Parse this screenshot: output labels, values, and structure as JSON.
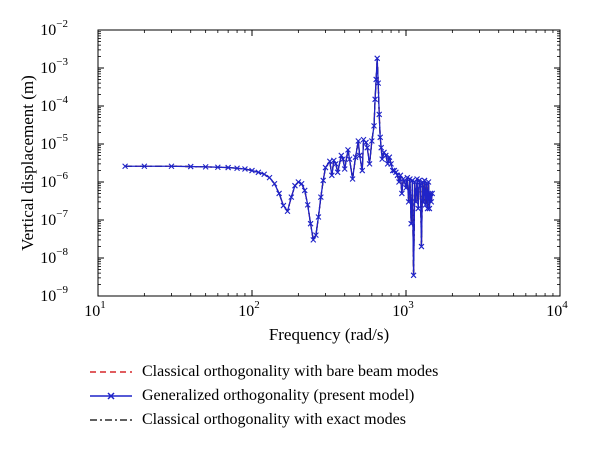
{
  "chart_data": {
    "type": "line",
    "xlabel": "Frequency (rad/s)",
    "ylabel": "Vertical displacement (m)",
    "xscale": "log",
    "yscale": "log",
    "xlim": [
      10,
      10000
    ],
    "ylim": [
      1e-09,
      0.01
    ],
    "x_ticks": [
      {
        "value": 10,
        "base": "10",
        "exp": "1"
      },
      {
        "value": 100,
        "base": "10",
        "exp": "2"
      },
      {
        "value": 1000,
        "base": "10",
        "exp": "3"
      },
      {
        "value": 10000,
        "base": "10",
        "exp": "4"
      }
    ],
    "y_ticks": [
      {
        "value": 1e-09,
        "base": "10",
        "exp": "−9"
      },
      {
        "value": 1e-08,
        "base": "10",
        "exp": "−8"
      },
      {
        "value": 1e-07,
        "base": "10",
        "exp": "−7"
      },
      {
        "value": 1e-06,
        "base": "10",
        "exp": "−6"
      },
      {
        "value": 1e-05,
        "base": "10",
        "exp": "−5"
      },
      {
        "value": 0.0001,
        "base": "10",
        "exp": "−4"
      },
      {
        "value": 0.001,
        "base": "10",
        "exp": "−3"
      },
      {
        "value": 0.01,
        "base": "10",
        "exp": "−2"
      }
    ],
    "grid": false,
    "legend_position": "below",
    "x": [
      15,
      20,
      30,
      40,
      50,
      60,
      70,
      80,
      90,
      100,
      110,
      120,
      130,
      140,
      150,
      160,
      170,
      180,
      190,
      200,
      210,
      220,
      230,
      240,
      250,
      260,
      270,
      280,
      290,
      300,
      320,
      330,
      340,
      350,
      360,
      380,
      390,
      400,
      420,
      430,
      450,
      470,
      490,
      500,
      520,
      530,
      550,
      560,
      580,
      600,
      620,
      630,
      640,
      650,
      660,
      670,
      680,
      690,
      700,
      720,
      740,
      760,
      780,
      800,
      820,
      840,
      860,
      880,
      900,
      920,
      940,
      960,
      980,
      1000,
      1020,
      1040,
      1060,
      1080,
      1100,
      1120,
      1140,
      1160,
      1180,
      1200,
      1220,
      1240,
      1260,
      1280,
      1300,
      1320,
      1340,
      1360,
      1380,
      1400,
      1420,
      1440,
      1460,
      1480
    ],
    "series": [
      {
        "name": "Classical orthogonality with bare beam modes",
        "color": "#d62728",
        "dash": "dashed",
        "marker": "none",
        "values": [
          2.6e-06,
          2.6e-06,
          2.6e-06,
          2.55e-06,
          2.5e-06,
          2.45e-06,
          2.4e-06,
          2.3e-06,
          2.2e-06,
          2e-06,
          1.8e-06,
          1.6e-06,
          1.3e-06,
          9e-07,
          5e-07,
          2.4e-07,
          1.7e-07,
          4e-07,
          8e-07,
          1e-06,
          9e-07,
          6e-07,
          2.5e-07,
          8e-08,
          3e-08,
          4e-08,
          1.2e-07,
          4e-07,
          1.1e-06,
          2.4e-06,
          3.5e-06,
          1.5e-06,
          3.7e-06,
          3e-06,
          1.8e-06,
          5e-06,
          4e-06,
          2.2e-06,
          7e-06,
          4e-06,
          1.2e-06,
          4.5e-06,
          1.2e-05,
          5e-06,
          2e-06,
          1.3e-05,
          1.1e-05,
          8e-06,
          3e-06,
          1.2e-05,
          3e-05,
          0.00015,
          0.0005,
          0.0018,
          0.0004,
          6e-05,
          1.5e-05,
          8e-06,
          4e-06,
          6e-06,
          5e-06,
          3e-06,
          4.5e-06,
          3e-06,
          2e-06,
          2e-06,
          1.8e-06,
          1.5e-06,
          1e-06,
          1.5e-06,
          5e-07,
          1.2e-06,
          1e-06,
          7e-07,
          1.3e-06,
          3e-07,
          1.2e-06,
          8e-08,
          1.1e-06,
          3.5e-09,
          1e-06,
          3e-07,
          1.2e-06,
          2e-07,
          1.1e-06,
          8e-07,
          2e-08,
          1e-06,
          3e-07,
          1.1e-06,
          2.5e-07,
          9e-07,
          2e-07,
          1e-06,
          2e-07,
          5e-07,
          3e-07,
          5e-07
        ]
      },
      {
        "name": "Generalized orthogonality (present model)",
        "color": "#1f23c8",
        "dash": "solid",
        "marker": "x",
        "values": [
          2.6e-06,
          2.6e-06,
          2.6e-06,
          2.55e-06,
          2.5e-06,
          2.45e-06,
          2.4e-06,
          2.3e-06,
          2.2e-06,
          2e-06,
          1.8e-06,
          1.6e-06,
          1.3e-06,
          9e-07,
          5e-07,
          2.4e-07,
          1.7e-07,
          4e-07,
          8e-07,
          1e-06,
          9e-07,
          6e-07,
          2.5e-07,
          8e-08,
          3e-08,
          4e-08,
          1.2e-07,
          4e-07,
          1.1e-06,
          2.4e-06,
          3.5e-06,
          1.5e-06,
          3.7e-06,
          3e-06,
          1.8e-06,
          5e-06,
          4e-06,
          2.2e-06,
          7e-06,
          4e-06,
          1.2e-06,
          4.5e-06,
          1.2e-05,
          5e-06,
          2e-06,
          1.3e-05,
          1.1e-05,
          8e-06,
          3e-06,
          1.2e-05,
          3e-05,
          0.00015,
          0.0005,
          0.0018,
          0.0004,
          6e-05,
          1.5e-05,
          8e-06,
          4e-06,
          6e-06,
          5e-06,
          3e-06,
          4.5e-06,
          3e-06,
          2e-06,
          2e-06,
          1.8e-06,
          1.5e-06,
          1e-06,
          1.5e-06,
          5e-07,
          1.2e-06,
          1e-06,
          7e-07,
          1.3e-06,
          3e-07,
          1.2e-06,
          8e-08,
          1.1e-06,
          3.5e-09,
          1e-06,
          3e-07,
          1.2e-06,
          2e-07,
          1.1e-06,
          8e-07,
          2e-08,
          1e-06,
          3e-07,
          1.1e-06,
          2.5e-07,
          9e-07,
          2e-07,
          1e-06,
          2e-07,
          5e-07,
          3e-07,
          5e-07
        ]
      },
      {
        "name": "Classical orthogonality with exact modes",
        "color": "#000000",
        "dash": "dashdot",
        "marker": "none",
        "values": [
          2.6e-06,
          2.6e-06,
          2.6e-06,
          2.55e-06,
          2.5e-06,
          2.45e-06,
          2.4e-06,
          2.3e-06,
          2.2e-06,
          2e-06,
          1.8e-06,
          1.6e-06,
          1.3e-06,
          9e-07,
          5e-07,
          2.4e-07,
          1.7e-07,
          4e-07,
          8e-07,
          1e-06,
          9e-07,
          6e-07,
          2.5e-07,
          8e-08,
          3e-08,
          4e-08,
          1.2e-07,
          4e-07,
          1.1e-06,
          2.4e-06,
          3.5e-06,
          1.5e-06,
          3.7e-06,
          3e-06,
          1.8e-06,
          5e-06,
          4e-06,
          2.2e-06,
          7e-06,
          4e-06,
          1.2e-06,
          4.5e-06,
          1.2e-05,
          5e-06,
          2e-06,
          1.3e-05,
          1.1e-05,
          8e-06,
          3e-06,
          1.2e-05,
          3e-05,
          0.00015,
          0.0005,
          0.0018,
          0.0004,
          6e-05,
          1.5e-05,
          8e-06,
          4e-06,
          6e-06,
          5e-06,
          3e-06,
          4.5e-06,
          3e-06,
          2e-06,
          2e-06,
          1.8e-06,
          1.5e-06,
          1e-06,
          1.5e-06,
          5e-07,
          1.2e-06,
          1e-06,
          7e-07,
          1.3e-06,
          3e-07,
          1.2e-06,
          8e-08,
          1.1e-06,
          3.5e-09,
          1e-06,
          3e-07,
          1.2e-06,
          2e-07,
          1.1e-06,
          8e-07,
          2e-08,
          1e-06,
          3e-07,
          1.1e-06,
          2.5e-07,
          9e-07,
          2e-07,
          1e-06,
          2e-07,
          5e-07,
          3e-07,
          5e-07
        ]
      }
    ]
  }
}
